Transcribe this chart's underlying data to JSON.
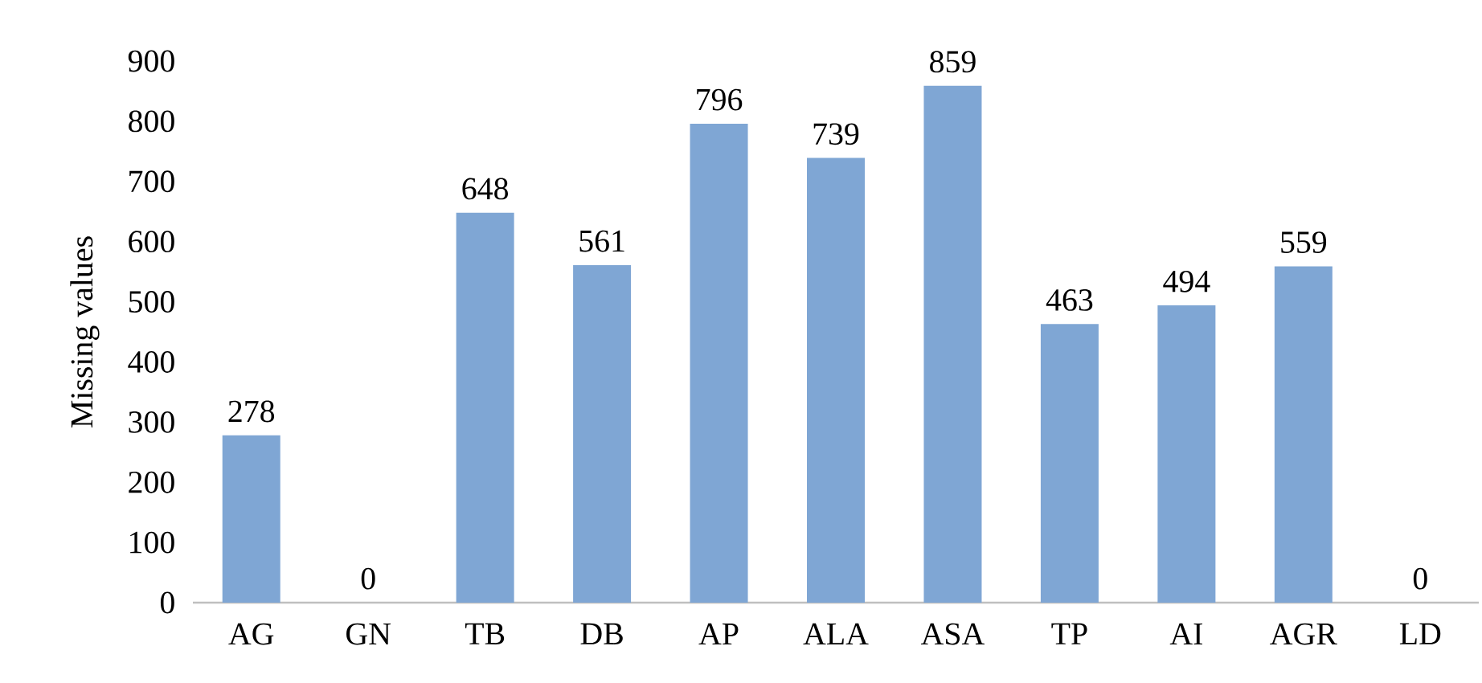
{
  "chart_data": {
    "type": "bar",
    "ylabel": "Missing values",
    "categories": [
      "AG",
      "GN",
      "TB",
      "DB",
      "AP",
      "ALA",
      "ASA",
      "TP",
      "AI",
      "AGR",
      "LD"
    ],
    "values": [
      278,
      0,
      648,
      561,
      796,
      739,
      859,
      463,
      494,
      559,
      0
    ],
    "color": "#7fa6d4",
    "ylim": [
      0,
      900
    ],
    "yticks": [
      0,
      100,
      200,
      300,
      400,
      500,
      600,
      700,
      800,
      900
    ],
    "data_labels": true
  }
}
